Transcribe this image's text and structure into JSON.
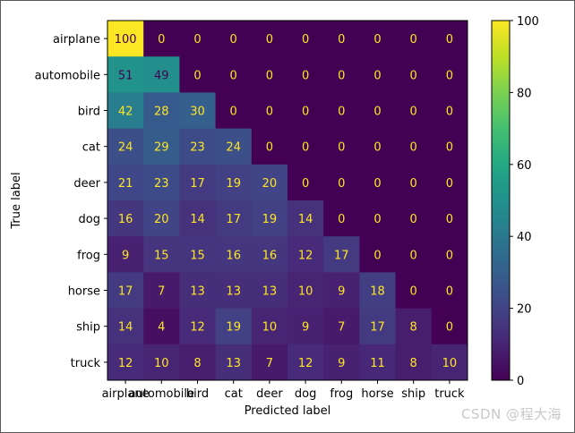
{
  "chart_data": {
    "type": "heatmap",
    "xlabel": "Predicted label",
    "ylabel": "True label",
    "x_categories": [
      "airplane",
      "automobile",
      "bird",
      "cat",
      "deer",
      "dog",
      "frog",
      "horse",
      "ship",
      "truck"
    ],
    "y_categories": [
      "airplane",
      "automobile",
      "bird",
      "cat",
      "deer",
      "dog",
      "frog",
      "horse",
      "ship",
      "truck"
    ],
    "values": [
      [
        100,
        0,
        0,
        0,
        0,
        0,
        0,
        0,
        0,
        0
      ],
      [
        51,
        49,
        0,
        0,
        0,
        0,
        0,
        0,
        0,
        0
      ],
      [
        42,
        28,
        30,
        0,
        0,
        0,
        0,
        0,
        0,
        0
      ],
      [
        24,
        29,
        23,
        24,
        0,
        0,
        0,
        0,
        0,
        0
      ],
      [
        21,
        23,
        17,
        19,
        20,
        0,
        0,
        0,
        0,
        0
      ],
      [
        16,
        20,
        14,
        17,
        19,
        14,
        0,
        0,
        0,
        0
      ],
      [
        9,
        15,
        15,
        16,
        16,
        12,
        17,
        0,
        0,
        0
      ],
      [
        17,
        7,
        13,
        13,
        13,
        10,
        9,
        18,
        0,
        0
      ],
      [
        14,
        4,
        12,
        19,
        10,
        9,
        7,
        17,
        8,
        0
      ],
      [
        12,
        10,
        8,
        13,
        7,
        12,
        9,
        11,
        8,
        10
      ]
    ],
    "colormap": "viridis",
    "colorbar": {
      "range": [
        0,
        100
      ],
      "ticks": [
        0,
        20,
        40,
        60,
        80,
        100
      ]
    },
    "text_color_light": "#fde725",
    "text_color_dark": "#440154",
    "grid": false
  },
  "watermark": "CSDN @程大海"
}
